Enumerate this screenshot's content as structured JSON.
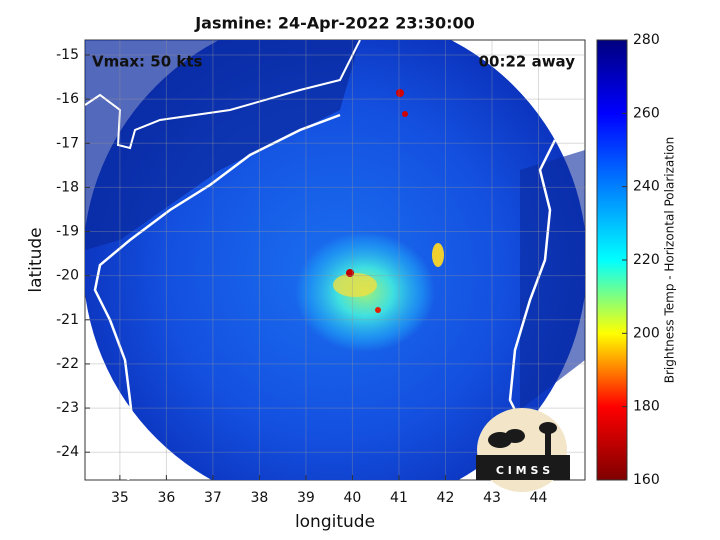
{
  "chart_data": {
    "type": "map",
    "title": "Jasmine: 24-Apr-2022 23:30:00",
    "annotations": [
      "Vmax: 50 kts",
      "00:22 away"
    ],
    "x_label": "longitude",
    "y_label": "latitude",
    "xlim": [
      34.25,
      45.0
    ],
    "xticks": [
      35,
      36,
      37,
      38,
      39,
      40,
      41,
      42,
      43,
      44
    ],
    "ylim": [
      -24.63,
      -14.66
    ],
    "yticks": [
      -15,
      -16,
      -17,
      -18,
      -19,
      -20,
      -21,
      -22,
      -23,
      -24
    ],
    "grid": true,
    "colorbar": {
      "label": "Brightness Temp - Horizontal Polarization",
      "lim": [
        160,
        280
      ],
      "ticks": [
        160,
        180,
        200,
        220,
        240,
        260,
        280
      ],
      "colors": [
        "#7f0000",
        "#ff0000",
        "#ffff00",
        "#00ffff",
        "#0080ff",
        "#0000ff",
        "#00007f"
      ]
    },
    "logo_text": "C I M S S"
  }
}
